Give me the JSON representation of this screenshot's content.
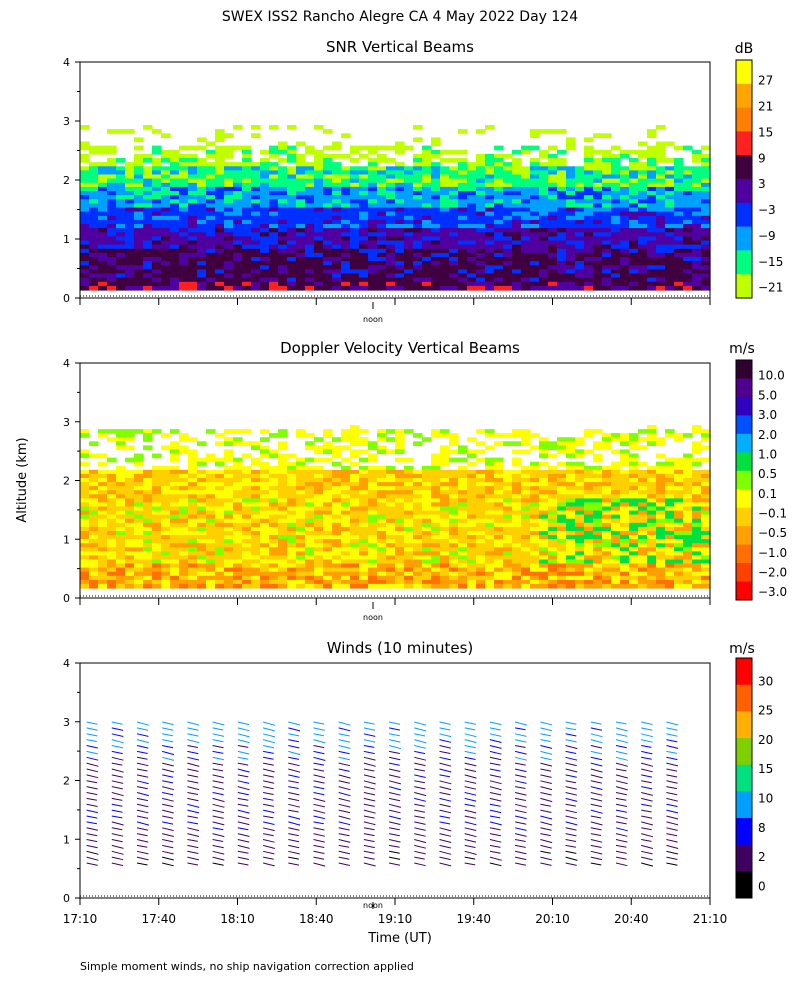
{
  "figure": {
    "title": "SWEX ISS2 Rancho Alegre CA   4 May 2022 Day 124",
    "ylabel": "Altitude (km)",
    "xlabel": "Time (UT)",
    "noon_label": "noon",
    "footer": "Simple moment winds, no ship navigation correction applied"
  },
  "chart_data": [
    {
      "type": "heatmap",
      "title": "SNR Vertical Beams",
      "colorbar_unit": "dB",
      "colorbar_ticks": [
        "27",
        "21",
        "15",
        "9",
        "3",
        "−3",
        "−9",
        "−15",
        "−21"
      ],
      "colorbar_colors": [
        "#ffff00",
        "#ffa500",
        "#ff8000",
        "#ff2020",
        "#400040",
        "#5000a0",
        "#0030ff",
        "#00a0ff",
        "#00ff80",
        "#c0ff00"
      ],
      "y_ticks": [
        "4",
        "3",
        "2",
        "1",
        "0"
      ],
      "ylim": [
        0,
        4
      ],
      "profile_by_altitude": [
        {
          "alt_km": 0.2,
          "snr_db": 10
        },
        {
          "alt_km": 0.5,
          "snr_db": 8
        },
        {
          "alt_km": 0.8,
          "snr_db": 4
        },
        {
          "alt_km": 1.1,
          "snr_db": -2
        },
        {
          "alt_km": 1.4,
          "snr_db": -7
        },
        {
          "alt_km": 1.7,
          "snr_db": -11
        },
        {
          "alt_km": 2.0,
          "snr_db": -15
        },
        {
          "alt_km": 2.4,
          "snr_db": -19
        },
        {
          "alt_km": 3.0,
          "snr_db": -20
        }
      ]
    },
    {
      "type": "heatmap",
      "title": "Doppler Velocity Vertical Beams",
      "colorbar_unit": "m/s",
      "colorbar_ticks": [
        "10.0",
        "5.0",
        "3.0",
        "2.0",
        "1.0",
        "0.5",
        "0.1",
        "−0.1",
        "−0.5",
        "−1.0",
        "−2.0",
        "−3.0"
      ],
      "colorbar_colors": [
        "#300030",
        "#500090",
        "#3000c0",
        "#0050ff",
        "#00b0ff",
        "#00e040",
        "#80ff00",
        "#ffff00",
        "#ffd000",
        "#ffa000",
        "#ff7000",
        "#ff4000",
        "#ff0000"
      ],
      "y_ticks": [
        "4",
        "3",
        "2",
        "1",
        "0"
      ],
      "ylim": [
        0,
        4
      ]
    },
    {
      "type": "scatter",
      "title": "Winds (10 minutes)",
      "colorbar_unit": "m/s",
      "colorbar_ticks": [
        "30",
        "25",
        "20",
        "15",
        "10",
        "8",
        "2",
        "0"
      ],
      "colorbar_colors": [
        "#ff0000",
        "#ff6000",
        "#ffb000",
        "#80d000",
        "#00e080",
        "#00a0ff",
        "#0000ff",
        "#400060",
        "#000000"
      ],
      "y_ticks": [
        "4",
        "3",
        "2",
        "1",
        "0"
      ],
      "ylim": [
        0,
        4
      ],
      "x_ticks": [
        "17:10",
        "17:40",
        "18:10",
        "18:40",
        "19:10",
        "19:40",
        "20:10",
        "20:40",
        "21:10"
      ],
      "xlim": [
        "17:10",
        "21:10"
      ],
      "barb_columns": 24,
      "barb_altitudes_km": [
        0.5,
        0.8,
        1.1,
        1.4,
        1.7,
        2.0,
        2.3,
        2.6,
        2.9
      ],
      "speed_profile_ms": [
        3,
        6,
        7,
        7,
        7,
        7,
        9,
        11,
        12
      ]
    }
  ]
}
